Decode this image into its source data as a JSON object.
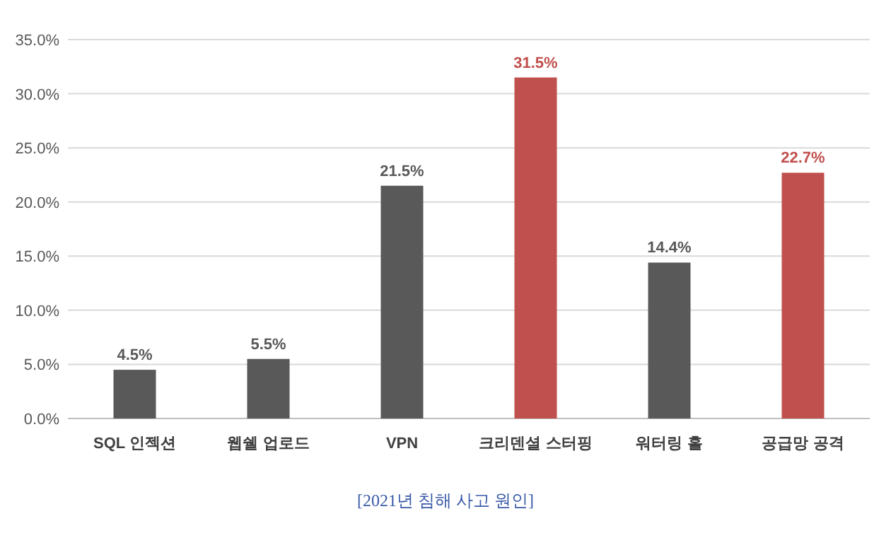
{
  "chart_data": {
    "type": "bar",
    "categories": [
      "SQL 인젝션",
      "웹쉘 업로드",
      "VPN",
      "크리덴셜 스터핑",
      "워터링 홀",
      "공급망 공격"
    ],
    "values": [
      4.5,
      5.5,
      21.5,
      31.5,
      14.4,
      22.7
    ],
    "colors": [
      "#595959",
      "#595959",
      "#595959",
      "#c0504d",
      "#595959",
      "#c0504d"
    ],
    "value_labels": [
      "4.5%",
      "5.5%",
      "21.5%",
      "31.5%",
      "14.4%",
      "22.7%"
    ],
    "ylim": [
      0,
      35
    ],
    "yticks": [
      {
        "value": 0,
        "label": "0.0%"
      },
      {
        "value": 5,
        "label": "5.0%"
      },
      {
        "value": 10,
        "label": "10.0%"
      },
      {
        "value": 15,
        "label": "15.0%"
      },
      {
        "value": 20,
        "label": "20.0%"
      },
      {
        "value": 25,
        "label": "25.0%"
      },
      {
        "value": 30,
        "label": "30.0%"
      },
      {
        "value": 35,
        "label": "35.0%"
      }
    ],
    "grid": "y",
    "annotations": [
      "[2021년 침해 사고 원인]"
    ]
  }
}
